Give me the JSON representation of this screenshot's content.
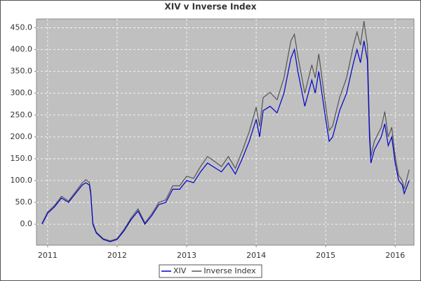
{
  "chart_data": {
    "type": "line",
    "title": "XIV v Inverse Index",
    "x": [
      2010.92,
      2011.0,
      2011.1,
      2011.2,
      2011.3,
      2011.4,
      2011.5,
      2011.55,
      2011.6,
      2011.62,
      2011.65,
      2011.7,
      2011.8,
      2011.9,
      2012.0,
      2012.1,
      2012.2,
      2012.3,
      2012.4,
      2012.5,
      2012.6,
      2012.7,
      2012.8,
      2012.9,
      2013.0,
      2013.1,
      2013.2,
      2013.3,
      2013.4,
      2013.5,
      2013.6,
      2013.7,
      2013.8,
      2013.9,
      2014.0,
      2014.05,
      2014.1,
      2014.2,
      2014.3,
      2014.4,
      2014.5,
      2014.55,
      2014.6,
      2014.7,
      2014.8,
      2014.85,
      2014.9,
      2015.0,
      2015.05,
      2015.1,
      2015.2,
      2015.3,
      2015.4,
      2015.45,
      2015.5,
      2015.55,
      2015.6,
      2015.63,
      2015.65,
      2015.7,
      2015.8,
      2015.85,
      2015.9,
      2015.95,
      2016.0,
      2016.05,
      2016.1,
      2016.13,
      2016.2
    ],
    "series": [
      {
        "name": "XIV",
        "color": "#0000cc",
        "values": [
          0,
          25,
          40,
          60,
          50,
          70,
          90,
          95,
          90,
          70,
          0,
          -20,
          -35,
          -40,
          -35,
          -15,
          10,
          30,
          0,
          20,
          45,
          50,
          80,
          80,
          100,
          95,
          120,
          140,
          130,
          120,
          140,
          115,
          150,
          190,
          240,
          200,
          260,
          270,
          255,
          300,
          380,
          400,
          350,
          270,
          330,
          300,
          350,
          240,
          190,
          200,
          260,
          300,
          370,
          400,
          370,
          420,
          375,
          200,
          140,
          170,
          200,
          230,
          180,
          200,
          140,
          100,
          90,
          70,
          100
        ]
      },
      {
        "name": "Inverse Index",
        "color": "#555555",
        "values": [
          2,
          28,
          43,
          64,
          53,
          74,
          95,
          102,
          96,
          75,
          3,
          -18,
          -33,
          -38,
          -33,
          -12,
          14,
          35,
          3,
          24,
          50,
          56,
          88,
          88,
          110,
          105,
          132,
          155,
          144,
          132,
          155,
          128,
          168,
          212,
          268,
          224,
          290,
          302,
          285,
          335,
          420,
          435,
          385,
          300,
          365,
          335,
          390,
          270,
          215,
          225,
          290,
          335,
          410,
          440,
          410,
          465,
          410,
          222,
          155,
          190,
          222,
          258,
          200,
          222,
          155,
          112,
          100,
          80,
          125
        ]
      }
    ],
    "xlim": [
      2010.84,
      2016.27
    ],
    "ylim": [
      -48,
      470
    ],
    "xticks": [
      2011,
      2012,
      2013,
      2014,
      2015,
      2016
    ],
    "yticks": [
      {
        "value": 0,
        "label": "0.0"
      },
      {
        "value": 50,
        "label": "50.0"
      },
      {
        "value": 100,
        "label": "100.0"
      },
      {
        "value": 150,
        "label": "150.0"
      },
      {
        "value": 200,
        "label": "200.0"
      },
      {
        "value": 250,
        "label": "250.0"
      },
      {
        "value": 300,
        "label": "300.0"
      },
      {
        "value": 350,
        "label": "350.0"
      },
      {
        "value": 400,
        "label": "400.0"
      },
      {
        "value": 450,
        "label": "450.0"
      }
    ],
    "grid": true,
    "legend": "bottom"
  }
}
